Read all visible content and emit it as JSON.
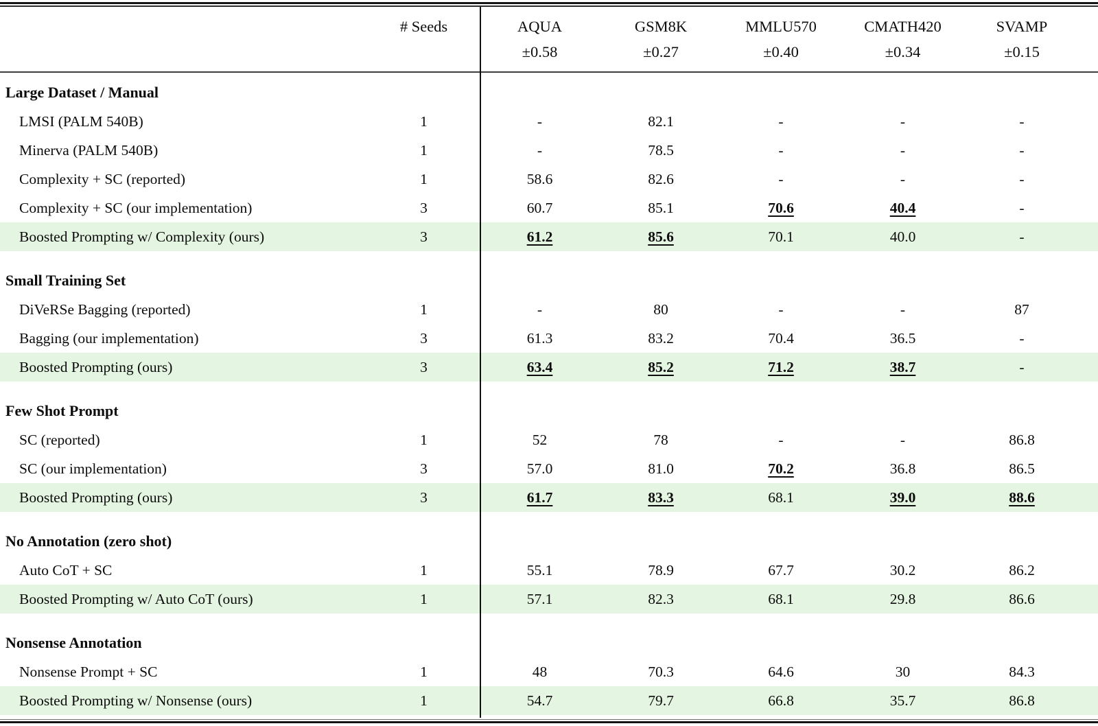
{
  "colors": {
    "highlight_row": "#e4f5e1",
    "rule": "#161616",
    "text": "#0c0c0c"
  },
  "table": {
    "seeds_header": "# Seeds",
    "columns": [
      {
        "name": "AQUA",
        "std": "±0.58"
      },
      {
        "name": "GSM8K",
        "std": "±0.27"
      },
      {
        "name": "MMLU570",
        "std": "±0.40"
      },
      {
        "name": "CMATH420",
        "std": "±0.34"
      },
      {
        "name": "SVAMP",
        "std": "±0.15"
      }
    ],
    "sections": [
      {
        "title": "Large Dataset / Manual",
        "rows": [
          {
            "label": "LMSI (PALM 540B)",
            "seeds": "1",
            "highlight": false,
            "values": [
              {
                "text": "-",
                "best": false
              },
              {
                "text": "82.1",
                "best": false
              },
              {
                "text": "-",
                "best": false
              },
              {
                "text": "-",
                "best": false
              },
              {
                "text": "-",
                "best": false
              }
            ]
          },
          {
            "label": "Minerva (PALM 540B)",
            "seeds": "1",
            "highlight": false,
            "values": [
              {
                "text": "-",
                "best": false
              },
              {
                "text": "78.5",
                "best": false
              },
              {
                "text": "-",
                "best": false
              },
              {
                "text": "-",
                "best": false
              },
              {
                "text": "-",
                "best": false
              }
            ]
          },
          {
            "label": "Complexity + SC (reported)",
            "seeds": "1",
            "highlight": false,
            "values": [
              {
                "text": "58.6",
                "best": false
              },
              {
                "text": "82.6",
                "best": false
              },
              {
                "text": "-",
                "best": false
              },
              {
                "text": "-",
                "best": false
              },
              {
                "text": "-",
                "best": false
              }
            ]
          },
          {
            "label": "Complexity + SC (our implementation)",
            "seeds": "3",
            "highlight": false,
            "values": [
              {
                "text": "60.7",
                "best": false
              },
              {
                "text": "85.1",
                "best": false
              },
              {
                "text": "70.6",
                "best": true
              },
              {
                "text": "40.4",
                "best": true
              },
              {
                "text": "-",
                "best": false
              }
            ]
          },
          {
            "label": "Boosted Prompting w/ Complexity (ours)",
            "seeds": "3",
            "highlight": true,
            "values": [
              {
                "text": "61.2",
                "best": true
              },
              {
                "text": "85.6",
                "best": true
              },
              {
                "text": "70.1",
                "best": false
              },
              {
                "text": "40.0",
                "best": false
              },
              {
                "text": "-",
                "best": false
              }
            ]
          }
        ]
      },
      {
        "title": "Small Training Set",
        "rows": [
          {
            "label": "DiVeRSe Bagging (reported)",
            "seeds": "1",
            "highlight": false,
            "values": [
              {
                "text": "-",
                "best": false
              },
              {
                "text": "80",
                "best": false
              },
              {
                "text": "-",
                "best": false
              },
              {
                "text": "-",
                "best": false
              },
              {
                "text": "87",
                "best": false
              }
            ]
          },
          {
            "label": "Bagging (our implementation)",
            "seeds": "3",
            "highlight": false,
            "values": [
              {
                "text": "61.3",
                "best": false
              },
              {
                "text": "83.2",
                "best": false
              },
              {
                "text": "70.4",
                "best": false
              },
              {
                "text": "36.5",
                "best": false
              },
              {
                "text": "-",
                "best": false
              }
            ]
          },
          {
            "label": "Boosted Prompting (ours)",
            "seeds": "3",
            "highlight": true,
            "values": [
              {
                "text": "63.4",
                "best": true
              },
              {
                "text": "85.2",
                "best": true
              },
              {
                "text": "71.2",
                "best": true
              },
              {
                "text": "38.7",
                "best": true
              },
              {
                "text": "-",
                "best": false
              }
            ]
          }
        ]
      },
      {
        "title": "Few Shot Prompt",
        "rows": [
          {
            "label": "SC (reported)",
            "seeds": "1",
            "highlight": false,
            "values": [
              {
                "text": "52",
                "best": false
              },
              {
                "text": "78",
                "best": false
              },
              {
                "text": "-",
                "best": false
              },
              {
                "text": "-",
                "best": false
              },
              {
                "text": "86.8",
                "best": false
              }
            ]
          },
          {
            "label": "SC (our implementation)",
            "seeds": "3",
            "highlight": false,
            "values": [
              {
                "text": "57.0",
                "best": false
              },
              {
                "text": "81.0",
                "best": false
              },
              {
                "text": "70.2",
                "best": true
              },
              {
                "text": "36.8",
                "best": false
              },
              {
                "text": "86.5",
                "best": false
              }
            ]
          },
          {
            "label": "Boosted Prompting (ours)",
            "seeds": "3",
            "highlight": true,
            "values": [
              {
                "text": "61.7",
                "best": true
              },
              {
                "text": "83.3",
                "best": true
              },
              {
                "text": "68.1",
                "best": false
              },
              {
                "text": "39.0",
                "best": true
              },
              {
                "text": "88.6",
                "best": true
              }
            ]
          }
        ]
      },
      {
        "title": "No Annotation (zero shot)",
        "rows": [
          {
            "label": "Auto CoT + SC",
            "seeds": "1",
            "highlight": false,
            "values": [
              {
                "text": "55.1",
                "best": false
              },
              {
                "text": "78.9",
                "best": false
              },
              {
                "text": "67.7",
                "best": false
              },
              {
                "text": "30.2",
                "best": false
              },
              {
                "text": "86.2",
                "best": false
              }
            ]
          },
          {
            "label": "Boosted Prompting w/ Auto CoT (ours)",
            "seeds": "1",
            "highlight": true,
            "values": [
              {
                "text": "57.1",
                "best": false
              },
              {
                "text": "82.3",
                "best": false
              },
              {
                "text": "68.1",
                "best": false
              },
              {
                "text": "29.8",
                "best": false
              },
              {
                "text": "86.6",
                "best": false
              }
            ]
          }
        ]
      },
      {
        "title": "Nonsense Annotation",
        "rows": [
          {
            "label": "Nonsense Prompt + SC",
            "seeds": "1",
            "highlight": false,
            "values": [
              {
                "text": "48",
                "best": false
              },
              {
                "text": "70.3",
                "best": false
              },
              {
                "text": "64.6",
                "best": false
              },
              {
                "text": "30",
                "best": false
              },
              {
                "text": "84.3",
                "best": false
              }
            ]
          },
          {
            "label": "Boosted Prompting w/ Nonsense (ours)",
            "seeds": "1",
            "highlight": true,
            "values": [
              {
                "text": "54.7",
                "best": false
              },
              {
                "text": "79.7",
                "best": false
              },
              {
                "text": "66.8",
                "best": false
              },
              {
                "text": "35.7",
                "best": false
              },
              {
                "text": "86.8",
                "best": false
              }
            ]
          }
        ]
      }
    ]
  }
}
